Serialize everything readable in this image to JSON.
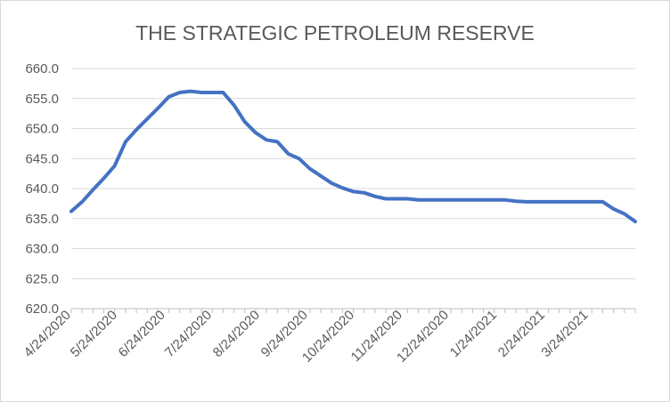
{
  "chart_data": {
    "type": "line",
    "title": "THE STRATEGIC PETROLEUM RESERVE",
    "xlabel": "",
    "ylabel": "",
    "ylim": [
      620,
      660
    ],
    "yticks": [
      "620.0",
      "625.0",
      "630.0",
      "635.0",
      "640.0",
      "645.0",
      "650.0",
      "655.0",
      "660.0"
    ],
    "xticks": [
      "4/24/2020",
      "5/24/2020",
      "6/24/2020",
      "7/24/2020",
      "8/24/2020",
      "9/24/2020",
      "10/24/2020",
      "11/24/2020",
      "12/24/2020",
      "1/24/2021",
      "2/24/2021",
      "3/24/2021"
    ],
    "grid": true,
    "legend": "none",
    "line_color": "#4472C4",
    "series": [
      {
        "values": [
          [
            "2020-04-24",
            636.2
          ],
          [
            "2020-05-01",
            637.8
          ],
          [
            "2020-05-08",
            639.8
          ],
          [
            "2020-05-15",
            641.7
          ],
          [
            "2020-05-22",
            643.8
          ],
          [
            "2020-05-29",
            647.8
          ],
          [
            "2020-06-05",
            649.8
          ],
          [
            "2020-06-12",
            651.6
          ],
          [
            "2020-06-19",
            653.4
          ],
          [
            "2020-06-26",
            655.3
          ],
          [
            "2020-07-03",
            656.0
          ],
          [
            "2020-07-10",
            656.2
          ],
          [
            "2020-07-17",
            656.0
          ],
          [
            "2020-07-24",
            656.0
          ],
          [
            "2020-07-31",
            656.0
          ],
          [
            "2020-08-07",
            653.9
          ],
          [
            "2020-08-14",
            651.1
          ],
          [
            "2020-08-21",
            649.3
          ],
          [
            "2020-08-28",
            648.1
          ],
          [
            "2020-09-04",
            647.8
          ],
          [
            "2020-09-11",
            645.8
          ],
          [
            "2020-09-18",
            645.0
          ],
          [
            "2020-09-25",
            643.3
          ],
          [
            "2020-10-02",
            642.1
          ],
          [
            "2020-10-09",
            640.9
          ],
          [
            "2020-10-16",
            640.1
          ],
          [
            "2020-10-23",
            639.5
          ],
          [
            "2020-10-30",
            639.3
          ],
          [
            "2020-11-06",
            638.7
          ],
          [
            "2020-11-13",
            638.3
          ],
          [
            "2020-11-20",
            638.3
          ],
          [
            "2020-11-27",
            638.3
          ],
          [
            "2020-12-04",
            638.1
          ],
          [
            "2020-12-11",
            638.1
          ],
          [
            "2020-12-18",
            638.1
          ],
          [
            "2020-12-25",
            638.1
          ],
          [
            "2021-01-01",
            638.1
          ],
          [
            "2021-01-08",
            638.1
          ],
          [
            "2021-01-15",
            638.1
          ],
          [
            "2021-01-22",
            638.1
          ],
          [
            "2021-01-29",
            638.1
          ],
          [
            "2021-02-05",
            637.9
          ],
          [
            "2021-02-12",
            637.8
          ],
          [
            "2021-02-19",
            637.8
          ],
          [
            "2021-02-26",
            637.8
          ],
          [
            "2021-03-05",
            637.8
          ],
          [
            "2021-03-12",
            637.8
          ],
          [
            "2021-03-19",
            637.8
          ],
          [
            "2021-03-26",
            637.8
          ],
          [
            "2021-04-02",
            637.8
          ],
          [
            "2021-04-09",
            636.6
          ],
          [
            "2021-04-16",
            635.8
          ],
          [
            "2021-04-23",
            634.5
          ]
        ]
      }
    ]
  }
}
